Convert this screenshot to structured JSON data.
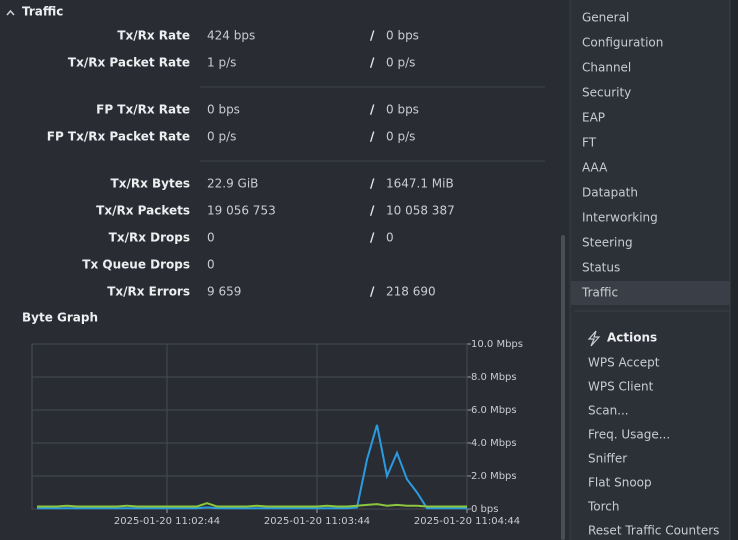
{
  "section_title": "Traffic",
  "separator": "/",
  "stats": [
    [
      {
        "label": "Tx/Rx Rate",
        "tx": "424 bps",
        "rx": "0 bps"
      },
      {
        "label": "Tx/Rx Packet Rate",
        "tx": "1 p/s",
        "rx": "0 p/s"
      }
    ],
    [
      {
        "label": "FP Tx/Rx Rate",
        "tx": "0 bps",
        "rx": "0 bps"
      },
      {
        "label": "FP Tx/Rx Packet Rate",
        "tx": "0 p/s",
        "rx": "0 p/s"
      }
    ],
    [
      {
        "label": "Tx/Rx Bytes",
        "tx": "22.9 GiB",
        "rx": "1647.1 MiB"
      },
      {
        "label": "Tx/Rx Packets",
        "tx": "19 056 753",
        "rx": "10 058 387"
      },
      {
        "label": "Tx/Rx Drops",
        "tx": "0",
        "rx": "0"
      },
      {
        "label": "Tx Queue Drops",
        "tx": "0"
      },
      {
        "label": "Tx/Rx Errors",
        "tx": "9 659",
        "rx": "218 690"
      }
    ]
  ],
  "chart_data": {
    "type": "line",
    "title": "Byte Graph",
    "x": [
      "2025-01-20 11:01:52",
      "2025-01-20 11:01:56",
      "2025-01-20 11:02:00",
      "2025-01-20 11:02:04",
      "2025-01-20 11:02:08",
      "2025-01-20 11:02:12",
      "2025-01-20 11:02:16",
      "2025-01-20 11:02:20",
      "2025-01-20 11:02:24",
      "2025-01-20 11:02:28",
      "2025-01-20 11:02:32",
      "2025-01-20 11:02:36",
      "2025-01-20 11:02:40",
      "2025-01-20 11:02:44",
      "2025-01-20 11:02:48",
      "2025-01-20 11:02:52",
      "2025-01-20 11:02:56",
      "2025-01-20 11:03:00",
      "2025-01-20 11:03:04",
      "2025-01-20 11:03:08",
      "2025-01-20 11:03:12",
      "2025-01-20 11:03:16",
      "2025-01-20 11:03:20",
      "2025-01-20 11:03:24",
      "2025-01-20 11:03:28",
      "2025-01-20 11:03:32",
      "2025-01-20 11:03:36",
      "2025-01-20 11:03:40",
      "2025-01-20 11:03:44",
      "2025-01-20 11:03:48",
      "2025-01-20 11:03:52",
      "2025-01-20 11:03:56",
      "2025-01-20 11:04:00",
      "2025-01-20 11:04:04",
      "2025-01-20 11:04:08",
      "2025-01-20 11:04:12",
      "2025-01-20 11:04:16",
      "2025-01-20 11:04:20",
      "2025-01-20 11:04:24",
      "2025-01-20 11:04:28",
      "2025-01-20 11:04:32",
      "2025-01-20 11:04:36",
      "2025-01-20 11:04:40",
      "2025-01-20 11:04:44"
    ],
    "series": [
      {
        "color": "#2b9be0",
        "values": [
          0.05,
          0.05,
          0.05,
          0.05,
          0.05,
          0.05,
          0.05,
          0.05,
          0.05,
          0.05,
          0.05,
          0.05,
          0.05,
          0.05,
          0.05,
          0.05,
          0.05,
          0.1,
          0.05,
          0.05,
          0.05,
          0.05,
          0.05,
          0.05,
          0.05,
          0.05,
          0.05,
          0.05,
          0.05,
          0.05,
          0.05,
          0.05,
          0.1,
          3.0,
          5.1,
          2.0,
          3.4,
          1.8,
          1.0,
          0.05,
          0.05,
          0.05,
          0.05,
          0.05
        ]
      },
      {
        "color": "#8cc63f",
        "values": [
          0.15,
          0.15,
          0.15,
          0.2,
          0.15,
          0.15,
          0.15,
          0.15,
          0.15,
          0.2,
          0.15,
          0.15,
          0.15,
          0.15,
          0.15,
          0.15,
          0.15,
          0.35,
          0.15,
          0.15,
          0.15,
          0.15,
          0.2,
          0.15,
          0.15,
          0.15,
          0.15,
          0.15,
          0.15,
          0.2,
          0.15,
          0.15,
          0.2,
          0.25,
          0.3,
          0.2,
          0.25,
          0.2,
          0.2,
          0.15,
          0.15,
          0.15,
          0.15,
          0.15
        ]
      }
    ],
    "xlim": [
      "2025-01-20 11:01:50",
      "2025-01-20 11:04:44"
    ],
    "xticks": [
      "2025-01-20 11:02:44",
      "2025-01-20 11:03:44",
      "2025-01-20 11:04:44"
    ],
    "ylim": [
      0,
      10
    ],
    "yticks": [
      {
        "value": 0,
        "label": "0 bps"
      },
      {
        "value": 2,
        "label": "2.0 Mbps"
      },
      {
        "value": 4,
        "label": "4.0 Mbps"
      },
      {
        "value": 6,
        "label": "6.0 Mbps"
      },
      {
        "value": 8,
        "label": "8.0 Mbps"
      },
      {
        "value": 10,
        "label": "10.0 Mbps"
      }
    ],
    "grid": true
  },
  "nav": {
    "items": [
      "General",
      "Configuration",
      "Channel",
      "Security",
      "EAP",
      "FT",
      "AAA",
      "Datapath",
      "Interworking",
      "Steering",
      "Status",
      "Traffic"
    ],
    "selected": 11
  },
  "actions": {
    "title": "Actions",
    "items": [
      "WPS Accept",
      "WPS Client",
      "Scan...",
      "Freq. Usage...",
      "Sniffer",
      "Flat Snoop",
      "Torch",
      "Reset Traffic Counters"
    ]
  }
}
